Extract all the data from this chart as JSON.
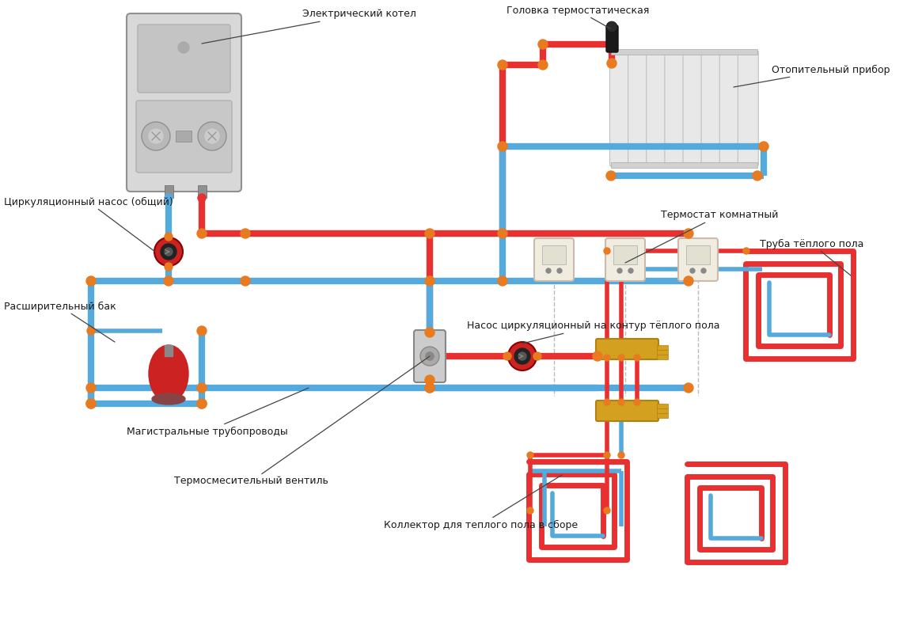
{
  "bg": "#ffffff",
  "red": "#e83030",
  "blue": "#55aadd",
  "orange": "#e87a20",
  "gray_boiler": "#d0d0d0",
  "gold": "#d4a020",
  "tank_red": "#cc2222",
  "text_col": "#1a1a1a",
  "labels": {
    "elektrokotel": "Электрический котел",
    "golovka": "Головка термостатическая",
    "otopitelny": "Отопительный прибор",
    "termostat": "Термостат комнатный",
    "tsirk_nasos": "Циркуляционный насос (общий)",
    "rasshir_bak": "Расширительный бак",
    "magistral": "Магистральные трубопроводы",
    "termosmes": "Термосмесительный вентиль",
    "nasos_kontur": "Насос циркуляционный на контур тёплого пола",
    "kollector": "Коллектор для теплого пола в сборе",
    "truba_teplogo": "Труба тёплого пола"
  }
}
